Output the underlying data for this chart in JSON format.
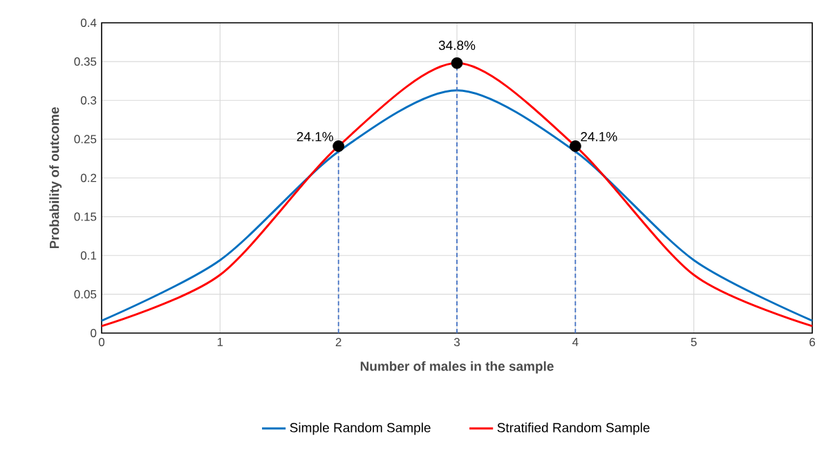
{
  "chart_data": {
    "type": "line",
    "xlabel": "Number of males in the sample",
    "ylabel": "Probability of outcome",
    "x": [
      0,
      1,
      2,
      3,
      4,
      5,
      6
    ],
    "series": [
      {
        "name": "Simple Random Sample",
        "color": "#0070c0",
        "values": [
          0.016,
          0.094,
          0.234,
          0.313,
          0.234,
          0.094,
          0.016
        ]
      },
      {
        "name": "Stratified Random Sample",
        "color": "#ff0000",
        "values": [
          0.009,
          0.075,
          0.241,
          0.348,
          0.241,
          0.075,
          0.009
        ]
      },
      {
        "type": "scatter",
        "color": "#000000",
        "x": [
          2,
          3,
          4
        ],
        "values": [
          0.241,
          0.348,
          0.241
        ],
        "marker": "circle"
      },
      {
        "type": "line",
        "color": "#4472c4",
        "line_style": "dashed",
        "x": [
          2,
          2
        ],
        "values": [
          0,
          0.241
        ]
      },
      {
        "type": "line",
        "color": "#4472c4",
        "line_style": "dashed",
        "x": [
          3,
          3
        ],
        "values": [
          0,
          0.348
        ]
      },
      {
        "type": "line",
        "color": "#4472c4",
        "line_style": "dashed",
        "x": [
          4,
          4
        ],
        "values": [
          0,
          0.241
        ]
      }
    ],
    "xlim": [
      0,
      6
    ],
    "xticks": [
      0,
      1,
      2,
      3,
      4,
      5,
      6
    ],
    "ylim": [
      0,
      0.4
    ],
    "yticks": [
      0,
      0.05,
      0.1,
      0.15,
      0.2,
      0.25,
      0.3,
      0.35,
      0.4
    ],
    "annotations": [
      {
        "text": "24.1%",
        "x": 2,
        "y": 0.241
      },
      {
        "text": "34.8%",
        "x": 3,
        "y": 0.348
      },
      {
        "text": "24.1%",
        "x": 4,
        "y": 0.241
      }
    ],
    "grid": true,
    "legend": "bottom"
  }
}
